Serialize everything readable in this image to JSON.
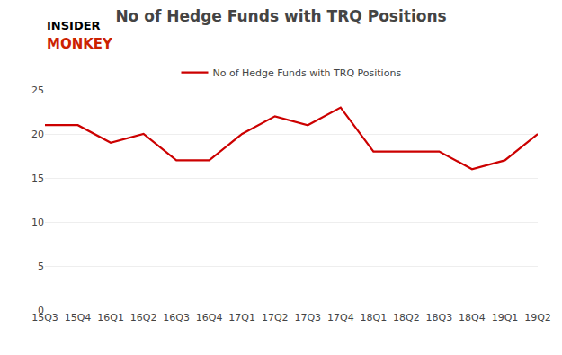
{
  "chart_data": {
    "type": "line",
    "title": "No of Hedge Funds with TRQ Positions",
    "categories": [
      "15Q3",
      "15Q4",
      "16Q1",
      "16Q2",
      "16Q3",
      "16Q4",
      "17Q1",
      "17Q2",
      "17Q3",
      "17Q4",
      "18Q1",
      "18Q2",
      "18Q3",
      "18Q4",
      "19Q1",
      "19Q2"
    ],
    "series": [
      {
        "name": "No of Hedge Funds with TRQ Positions",
        "color": "#cc0000",
        "values": [
          21,
          21,
          19,
          20,
          17,
          17,
          20,
          22,
          21,
          23,
          18,
          18,
          18,
          16,
          17,
          20
        ]
      }
    ],
    "ylim": [
      0,
      25
    ],
    "yticks": [
      0,
      5,
      10,
      15,
      20,
      25
    ],
    "grid": true,
    "legend": "top",
    "annotations": [
      {
        "text": "INSIDER",
        "color": "#000000"
      },
      {
        "text": "MONKEY",
        "color": "#cc2200"
      }
    ]
  }
}
